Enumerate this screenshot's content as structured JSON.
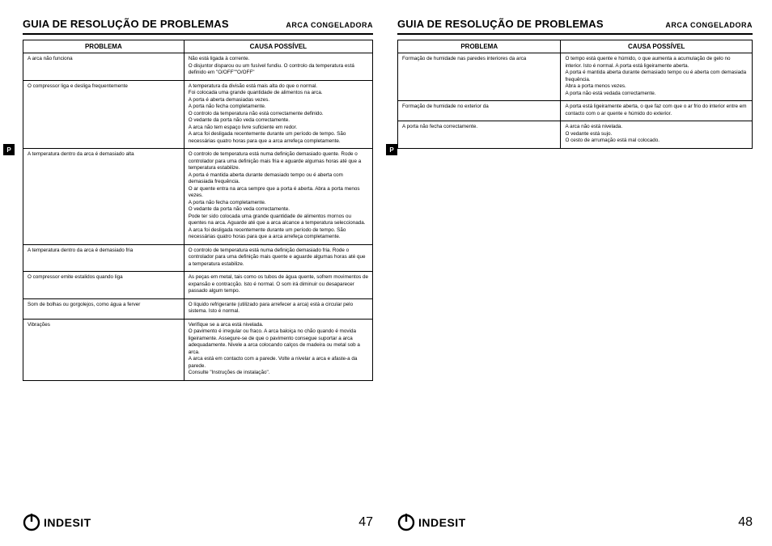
{
  "header": {
    "title": "GUIA DE RESOLUÇÃO DE PROBLEMAS",
    "subtitle": "ARCA CONGELADORA"
  },
  "langTab": "P",
  "brand": "INDESIT",
  "columns": {
    "problem": "PROBLEMA",
    "cause": "CAUSA POSSÍVEL"
  },
  "pageLeft": {
    "number": "47",
    "rows": [
      {
        "problem": "A arca não funciona",
        "cause": "Não está ligada à corrente.\nO disjuntor disparou  ou um fusível fundiu. O controlo da temperatura está definido em \"O/OFF\"\"O/OFF\""
      },
      {
        "problem": "O compressor liga e desliga frequentemente",
        "cause": "A temperatura da divisão está mais alta do que o normal.\nFoi colocada uma grande quantidade de alimentos na arca.\nA porta é aberta demasiadas vezes.\nA porta não fecha completamente.\nO controlo da temperatura não está correctamente definido.\nO vedante da porta não veda correctamente.\nA arca não tem espaço livre suficiente em redor.\nA arca foi desligada recentemente durante um período de tempo. São necessárias quatro horas para que a arca arrefeça completamente."
      },
      {
        "problem": "A temperatura dentro da arca é demasiado alta",
        "cause": "O controlo de temperatura está numa definição demasiado quente. Rode o controlador para uma definição mais fria e aguarde algumas horas até que a temperatura estabilize.\nA porta é mantida aberta durante demasiado tempo ou é aberta com demasiada frequência.\nO ar quente entra na arca sempre que a porta é aberta. Abra a porta menos vezes.\nA porta não fecha completamente.\nO vedante da porta não veda correctamente.\nPode ter sido colocada uma grande quantidade de alimentos mornos ou quentes na arca. Aguarde até que a arca alcance a temperatura seleccionada.\nA arca foi desligada recentemente durante um período de tempo. São necessárias quatro horas para que a arca arrefeça completamente."
      },
      {
        "problem": "A temperatura dentro da arca é demasiado fria",
        "cause": "O controlo de temperatura está numa definição demasiado fria. Rode o controlador para uma definição mais quente e aguarde algumas horas até que a temperatura estabilize."
      },
      {
        "problem": "O compressor emite estalidos quando liga",
        "cause": "As peças em metal, tais como os tubos de água quente, sofrem movimentos de expansão e contracção. Isto é normal. O som irá diminuir ou desaparecer passado algum tempo."
      },
      {
        "problem": "Som de bolhas ou gorgolejos, como água a ferver",
        "cause": "O líquido refrigerante (utilizado para arrefecer a arca) está a circular pelo sistema. Isto é normal."
      },
      {
        "problem": "Vibrações",
        "cause": "Verifique se a arca está nivelada.\nO pavimento é irregular ou fraco. A arca baloiça no chão quando é movida ligeiramente. Assegure-se de que o pavimento consegue suportar a arca adequadamente. Nivele a arca colocando calços de madeira ou metal sob a arca.\nA arca está em contacto com a parede. Volte a nivelar a arca e afaste-a da parede.\nConsulte \"Instruções de instalação\"."
      }
    ]
  },
  "pageRight": {
    "number": "48",
    "rows": [
      {
        "problem": "Formação de humidade nas paredes interiores da arca",
        "cause": "O tempo está quente e húmido, o que aumenta a acumulação de gelo no interior. Isto é normal. A porta está ligeiramente aberta.\nA porta é mantida aberta durante demasiado tempo ou é aberta com demasiada frequência.\nAbra a porta menos vezes.\nA porta não está vedada correctamente."
      },
      {
        "problem": "Formação de humidade no exterior da",
        "cause": "A porta está ligeiramente aberta, o que faz com que o ar frio do interior entre em contacto com o ar quente e húmido do exterior."
      },
      {
        "problem": "A porta não fecha correctamente.",
        "cause": "A arca não está nivelada.\nO vedante está sujo.\nO cesto de arrumação está mal colocado."
      }
    ]
  },
  "style": {
    "bg": "#ffffff",
    "ink": "#000000",
    "headerFont": 13,
    "subFont": 9,
    "thFont": 8,
    "tdFont": 6.3,
    "pageNumFont": 16,
    "logoFont": 14
  }
}
